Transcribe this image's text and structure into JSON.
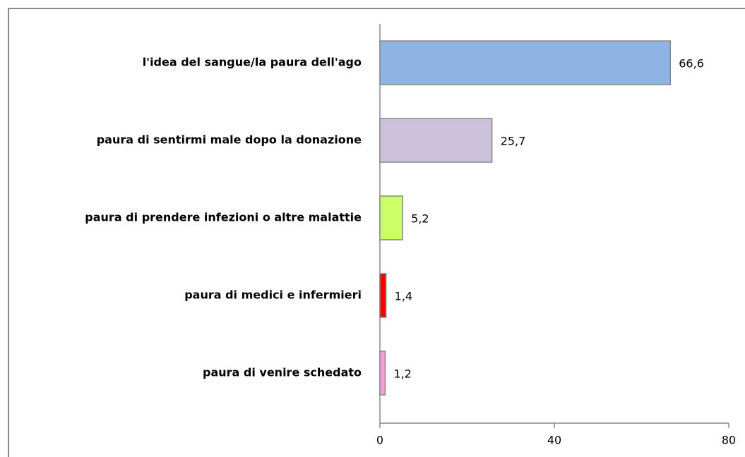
{
  "chart_data": {
    "type": "bar",
    "orientation": "horizontal",
    "categories": [
      "l'idea del sangue/la paura dell'ago",
      "paura di sentirmi male dopo la donazione",
      "paura di prendere infezioni o altre malattie",
      "paura di medici e infermieri",
      "paura di venire schedato"
    ],
    "values": [
      66.6,
      25.7,
      5.2,
      1.4,
      1.2
    ],
    "value_labels": [
      "66,6",
      "25,7",
      "5,2",
      "1,4",
      "1,2"
    ],
    "colors": [
      "#8eb4e3",
      "#ccc1da",
      "#ccff66",
      "#ff0000",
      "#f2a0dc"
    ],
    "xlim": [
      0,
      80
    ],
    "xticks": [
      0,
      40,
      80
    ],
    "grid": false
  }
}
